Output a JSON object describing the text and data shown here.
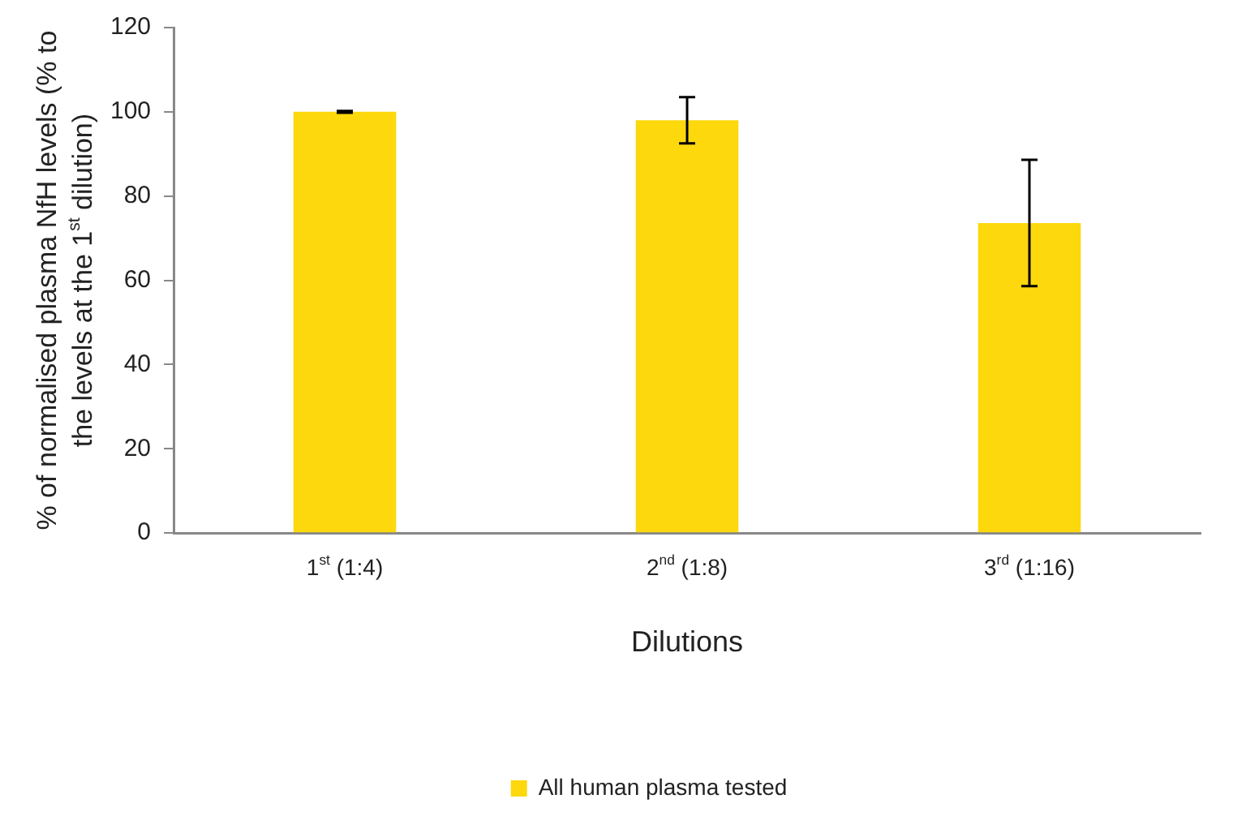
{
  "chart_data": {
    "type": "bar",
    "xlabel": "Dilutions",
    "ylabel": "% of normalised plasma NfH levels (% to the levels at the 1$^{st}$ dilution)",
    "categories": [
      "1$^{st}$ (1:4)",
      "2$^{nd}$ (1:8)",
      "3$^{rd}$ (1:16)"
    ],
    "series": [
      {
        "name": "All human plasma tested",
        "color": "#fcd80c",
        "values": [
          100,
          98,
          73.6
        ],
        "errors": [
          0.2,
          5.5,
          15
        ]
      }
    ],
    "ylim": [
      0,
      120
    ],
    "yticks": [
      0,
      20,
      40,
      60,
      80,
      100,
      120
    ],
    "grid": false,
    "legend": "bottom"
  }
}
